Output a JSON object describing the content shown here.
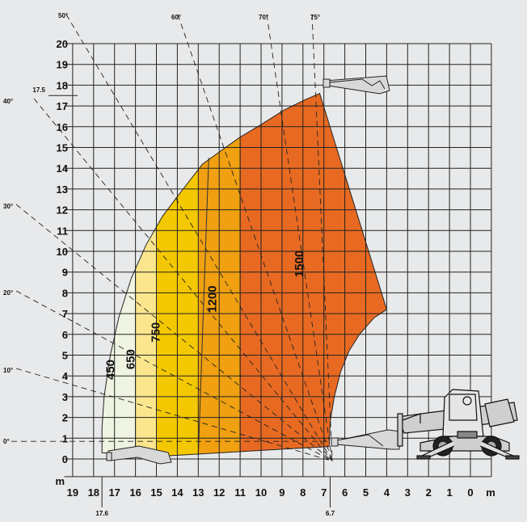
{
  "chart_data": {
    "type": "load_chart",
    "x_unit": "m",
    "y_unit": "m",
    "x_ticks": [
      19,
      18,
      17,
      16,
      15,
      14,
      13,
      12,
      11,
      10,
      9,
      8,
      7,
      6,
      5,
      4,
      3,
      2,
      1,
      0
    ],
    "y_ticks": [
      0,
      1,
      2,
      3,
      4,
      5,
      6,
      7,
      8,
      9,
      10,
      11,
      12,
      13,
      14,
      15,
      16,
      17,
      18,
      19,
      20
    ],
    "xlim": [
      19,
      0
    ],
    "ylim": [
      0,
      20
    ],
    "grid": true,
    "max_height_label": "17.5",
    "max_reach_label": "17.6",
    "min_reach_label": "6.7",
    "angles": [
      "0°",
      "10°",
      "20°",
      "30°",
      "40°",
      "50°",
      "60°",
      "70°",
      "75°"
    ],
    "zones": [
      {
        "label": "450",
        "x_range": [
          17.6,
          16
        ],
        "color": "#eef4e1"
      },
      {
        "label": "650",
        "x_range": [
          16,
          15
        ],
        "color": "#fbe68d"
      },
      {
        "label": "750",
        "x_range": [
          15,
          13
        ],
        "color": "#f4c800"
      },
      {
        "label": "1200",
        "x_range": [
          13,
          11
        ],
        "color": "#f0a010"
      },
      {
        "label": "1500",
        "x_range": [
          11,
          4
        ],
        "color": "#e86a22"
      }
    ]
  }
}
